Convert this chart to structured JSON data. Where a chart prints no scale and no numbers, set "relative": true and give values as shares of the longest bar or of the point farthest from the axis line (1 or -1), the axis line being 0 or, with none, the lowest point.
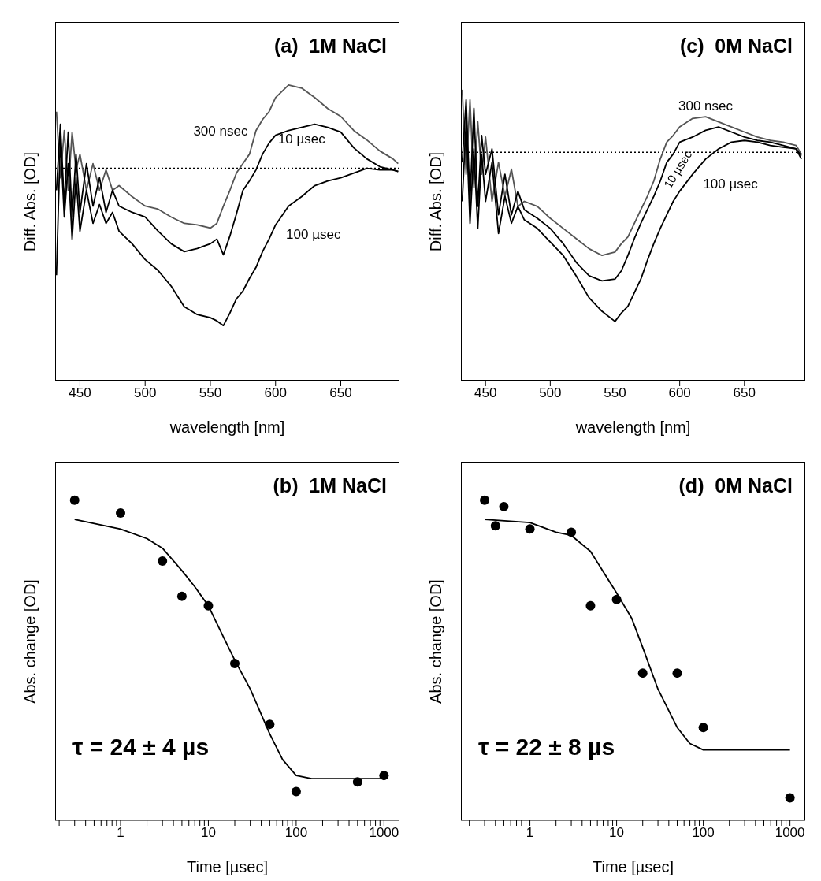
{
  "chart_data": [
    {
      "type": "line",
      "title": "(a)  1M NaCl",
      "xlabel": "wavelength [nm]",
      "ylabel": "Diff. Abs. [OD]",
      "relative": true,
      "grid": false,
      "legend": false,
      "marker": "none",
      "xlim": [
        431,
        695
      ],
      "xticks": [
        450,
        500,
        550,
        600,
        650
      ],
      "ref_lines": [
        {
          "axis": "y",
          "value": 0,
          "line_style": "dotted",
          "color": "#000000"
        }
      ],
      "x": [
        432,
        435,
        438,
        441,
        444,
        447,
        450,
        455,
        460,
        465,
        470,
        475,
        480,
        490,
        500,
        510,
        520,
        530,
        540,
        550,
        555,
        560,
        565,
        570,
        575,
        580,
        585,
        590,
        595,
        600,
        610,
        620,
        630,
        640,
        650,
        660,
        670,
        680,
        690,
        694
      ],
      "series": [
        {
          "name": "300 nsec",
          "color": "#555555",
          "values": [
            0.36,
            -0.06,
            0.24,
            -0.14,
            0.23,
            -0.01,
            0.09,
            -0.14,
            0.03,
            -0.14,
            -0.01,
            -0.14,
            -0.11,
            -0.18,
            -0.24,
            -0.26,
            -0.31,
            -0.35,
            -0.36,
            -0.38,
            -0.35,
            -0.24,
            -0.14,
            -0.03,
            0.03,
            0.09,
            0.24,
            0.31,
            0.36,
            0.45,
            0.53,
            0.51,
            0.45,
            0.38,
            0.33,
            0.24,
            0.18,
            0.11,
            0.06,
            0.03
          ]
        },
        {
          "name": "10 µsec",
          "color": "#000000",
          "values": [
            -0.14,
            0.28,
            -0.23,
            0.23,
            -0.31,
            0.09,
            -0.28,
            0.03,
            -0.24,
            -0.06,
            -0.28,
            -0.14,
            -0.24,
            -0.28,
            -0.31,
            -0.4,
            -0.48,
            -0.53,
            -0.51,
            -0.48,
            -0.45,
            -0.55,
            -0.43,
            -0.29,
            -0.14,
            -0.08,
            -0.01,
            0.09,
            0.16,
            0.21,
            0.24,
            0.26,
            0.28,
            0.26,
            0.23,
            0.13,
            0.06,
            0.01,
            -0.01,
            -0.02
          ]
        },
        {
          "name": "100 µsec",
          "color": "#000000",
          "values": [
            -0.68,
            0.19,
            -0.31,
            0.03,
            -0.45,
            -0.06,
            -0.4,
            -0.14,
            -0.35,
            -0.23,
            -0.35,
            -0.28,
            -0.4,
            -0.48,
            -0.58,
            -0.65,
            -0.75,
            -0.88,
            -0.93,
            -0.95,
            -0.97,
            -1,
            -0.92,
            -0.83,
            -0.78,
            -0.7,
            -0.63,
            -0.53,
            -0.45,
            -0.36,
            -0.24,
            -0.18,
            -0.11,
            -0.08,
            -0.06,
            -0.03,
            0,
            -0.01,
            -0.01,
            -0.02
          ]
        }
      ]
    },
    {
      "type": "line",
      "title": "(c)  0M NaCl",
      "xlabel": "wavelength [nm]",
      "ylabel": "Diff. Abs. [OD]",
      "relative": true,
      "grid": false,
      "legend": false,
      "marker": "none",
      "xlim": [
        431,
        697
      ],
      "xticks": [
        450,
        500,
        550,
        600,
        650
      ],
      "ref_lines": [
        {
          "axis": "y",
          "value": 0,
          "line_style": "dotted",
          "color": "#000000"
        }
      ],
      "x": [
        432,
        435,
        438,
        441,
        444,
        447,
        450,
        455,
        460,
        465,
        470,
        475,
        480,
        490,
        500,
        510,
        520,
        530,
        540,
        550,
        555,
        560,
        565,
        570,
        575,
        580,
        585,
        590,
        595,
        600,
        610,
        620,
        630,
        640,
        650,
        660,
        670,
        680,
        690,
        694
      ],
      "series": [
        {
          "name": "300 nsec",
          "color": "#555555",
          "values": [
            0.37,
            -0.13,
            0.31,
            -0.21,
            0.18,
            -0.13,
            0.09,
            -0.29,
            -0.06,
            -0.26,
            -0.1,
            -0.32,
            -0.29,
            -0.32,
            -0.39,
            -0.45,
            -0.51,
            -0.57,
            -0.61,
            -0.59,
            -0.54,
            -0.5,
            -0.42,
            -0.34,
            -0.26,
            -0.17,
            -0.04,
            0.06,
            0.1,
            0.15,
            0.2,
            0.21,
            0.18,
            0.15,
            0.12,
            0.09,
            0.07,
            0.06,
            0.04,
            -0.01
          ]
        },
        {
          "name": "10 µsec",
          "color": "#000000",
          "values": [
            -0.06,
            0.31,
            -0.29,
            0.26,
            -0.32,
            0.1,
            -0.13,
            0.02,
            -0.37,
            -0.13,
            -0.37,
            -0.23,
            -0.34,
            -0.39,
            -0.45,
            -0.54,
            -0.65,
            -0.73,
            -0.76,
            -0.75,
            -0.7,
            -0.61,
            -0.51,
            -0.42,
            -0.34,
            -0.26,
            -0.17,
            -0.06,
            -0.01,
            0.06,
            0.09,
            0.13,
            0.15,
            0.12,
            0.09,
            0.07,
            0.06,
            0.04,
            0.02,
            -0.04
          ]
        },
        {
          "name": "100 µsec",
          "color": "#000000",
          "values": [
            -0.29,
            0.18,
            -0.42,
            0.02,
            -0.45,
            -0.01,
            -0.29,
            -0.06,
            -0.48,
            -0.26,
            -0.42,
            -0.32,
            -0.4,
            -0.45,
            -0.53,
            -0.61,
            -0.73,
            -0.86,
            -0.94,
            -1,
            -0.95,
            -0.91,
            -0.83,
            -0.75,
            -0.64,
            -0.54,
            -0.45,
            -0.37,
            -0.29,
            -0.23,
            -0.13,
            -0.04,
            0.02,
            0.06,
            0.07,
            0.06,
            0.04,
            0.03,
            0.02,
            -0.02
          ]
        }
      ]
    },
    {
      "type": "scatter",
      "title": "(b)  1M NaCl",
      "xlabel": "Time [µsec]",
      "ylabel": "Abs. change [OD]",
      "relative": true,
      "grid": false,
      "legend": false,
      "log": "x",
      "xlim": [
        0.18,
        1500
      ],
      "xticks": [
        {
          "value": 0.2,
          "label": null
        },
        {
          "value": 0.3,
          "label": null
        },
        {
          "value": 0.4,
          "label": null
        },
        {
          "value": 0.5,
          "label": null
        },
        {
          "value": 0.6,
          "label": null
        },
        {
          "value": 0.7,
          "label": null
        },
        {
          "value": 0.8,
          "label": null
        },
        {
          "value": 0.9,
          "label": null
        },
        1,
        {
          "value": 2,
          "label": null
        },
        {
          "value": 3,
          "label": null
        },
        {
          "value": 4,
          "label": null
        },
        {
          "value": 5,
          "label": null
        },
        {
          "value": 6,
          "label": null
        },
        {
          "value": 7,
          "label": null
        },
        {
          "value": 8,
          "label": null
        },
        {
          "value": 9,
          "label": null
        },
        10,
        {
          "value": 20,
          "label": null
        },
        {
          "value": 30,
          "label": null
        },
        {
          "value": 40,
          "label": null
        },
        {
          "value": 50,
          "label": null
        },
        {
          "value": 60,
          "label": null
        },
        {
          "value": 70,
          "label": null
        },
        {
          "value": 80,
          "label": null
        },
        {
          "value": 90,
          "label": null
        },
        100,
        {
          "value": 200,
          "label": null
        },
        {
          "value": 300,
          "label": null
        },
        {
          "value": 400,
          "label": null
        },
        {
          "value": 500,
          "label": null
        },
        {
          "value": 600,
          "label": null
        },
        {
          "value": 700,
          "label": null
        },
        {
          "value": 800,
          "label": null
        },
        {
          "value": 900,
          "label": null
        },
        1000
      ],
      "annotations": [
        "τ = 24 ± 4 µs"
      ],
      "series": [
        {
          "marker": "circle",
          "color": "#000000",
          "x": [
            0.3,
            1,
            3,
            5,
            10,
            20,
            50,
            100,
            500,
            1000
          ],
          "values": [
            1,
            0.96,
            0.81,
            0.7,
            0.67,
            0.49,
            0.3,
            0.09,
            0.12,
            0.14
          ]
        },
        {
          "type": "line",
          "marker": "none",
          "color": "#000000",
          "x": [
            0.3,
            1,
            2,
            3,
            5,
            7,
            10,
            15,
            20,
            30,
            50,
            70,
            100,
            150,
            200,
            1000
          ],
          "values": [
            0.94,
            0.91,
            0.88,
            0.85,
            0.78,
            0.73,
            0.67,
            0.57,
            0.5,
            0.41,
            0.27,
            0.19,
            0.14,
            0.13,
            0.13,
            0.13
          ]
        }
      ]
    },
    {
      "type": "scatter",
      "title": "(d)  0M NaCl",
      "xlabel": "Time [µsec]",
      "ylabel": "Abs. change [OD]",
      "relative": true,
      "grid": false,
      "legend": false,
      "log": "x",
      "xlim": [
        0.16,
        1500
      ],
      "xticks": [
        {
          "value": 0.2,
          "label": null
        },
        {
          "value": 0.3,
          "label": null
        },
        {
          "value": 0.4,
          "label": null
        },
        {
          "value": 0.5,
          "label": null
        },
        {
          "value": 0.6,
          "label": null
        },
        {
          "value": 0.7,
          "label": null
        },
        {
          "value": 0.8,
          "label": null
        },
        {
          "value": 0.9,
          "label": null
        },
        1,
        {
          "value": 2,
          "label": null
        },
        {
          "value": 3,
          "label": null
        },
        {
          "value": 4,
          "label": null
        },
        {
          "value": 5,
          "label": null
        },
        {
          "value": 6,
          "label": null
        },
        {
          "value": 7,
          "label": null
        },
        {
          "value": 8,
          "label": null
        },
        {
          "value": 9,
          "label": null
        },
        10,
        {
          "value": 20,
          "label": null
        },
        {
          "value": 30,
          "label": null
        },
        {
          "value": 40,
          "label": null
        },
        {
          "value": 50,
          "label": null
        },
        {
          "value": 60,
          "label": null
        },
        {
          "value": 70,
          "label": null
        },
        {
          "value": 80,
          "label": null
        },
        {
          "value": 90,
          "label": null
        },
        100,
        {
          "value": 200,
          "label": null
        },
        {
          "value": 300,
          "label": null
        },
        {
          "value": 400,
          "label": null
        },
        {
          "value": 500,
          "label": null
        },
        {
          "value": 600,
          "label": null
        },
        {
          "value": 700,
          "label": null
        },
        {
          "value": 800,
          "label": null
        },
        {
          "value": 900,
          "label": null
        },
        1000
      ],
      "annotations": [
        "τ = 22 ± 8 µs"
      ],
      "series": [
        {
          "marker": "circle",
          "color": "#000000",
          "x": [
            0.3,
            0.4,
            0.5,
            1,
            3,
            5,
            10,
            20,
            50,
            100,
            1000
          ],
          "values": [
            1,
            0.92,
            0.98,
            0.91,
            0.9,
            0.67,
            0.69,
            0.46,
            0.46,
            0.29,
            0.07
          ]
        },
        {
          "type": "line",
          "marker": "none",
          "color": "#000000",
          "x": [
            0.3,
            1,
            2,
            3,
            5,
            10,
            15,
            20,
            30,
            50,
            70,
            100,
            150,
            1000
          ],
          "values": [
            0.94,
            0.93,
            0.9,
            0.89,
            0.84,
            0.71,
            0.63,
            0.54,
            0.41,
            0.29,
            0.24,
            0.22,
            0.22,
            0.22
          ]
        }
      ]
    }
  ]
}
